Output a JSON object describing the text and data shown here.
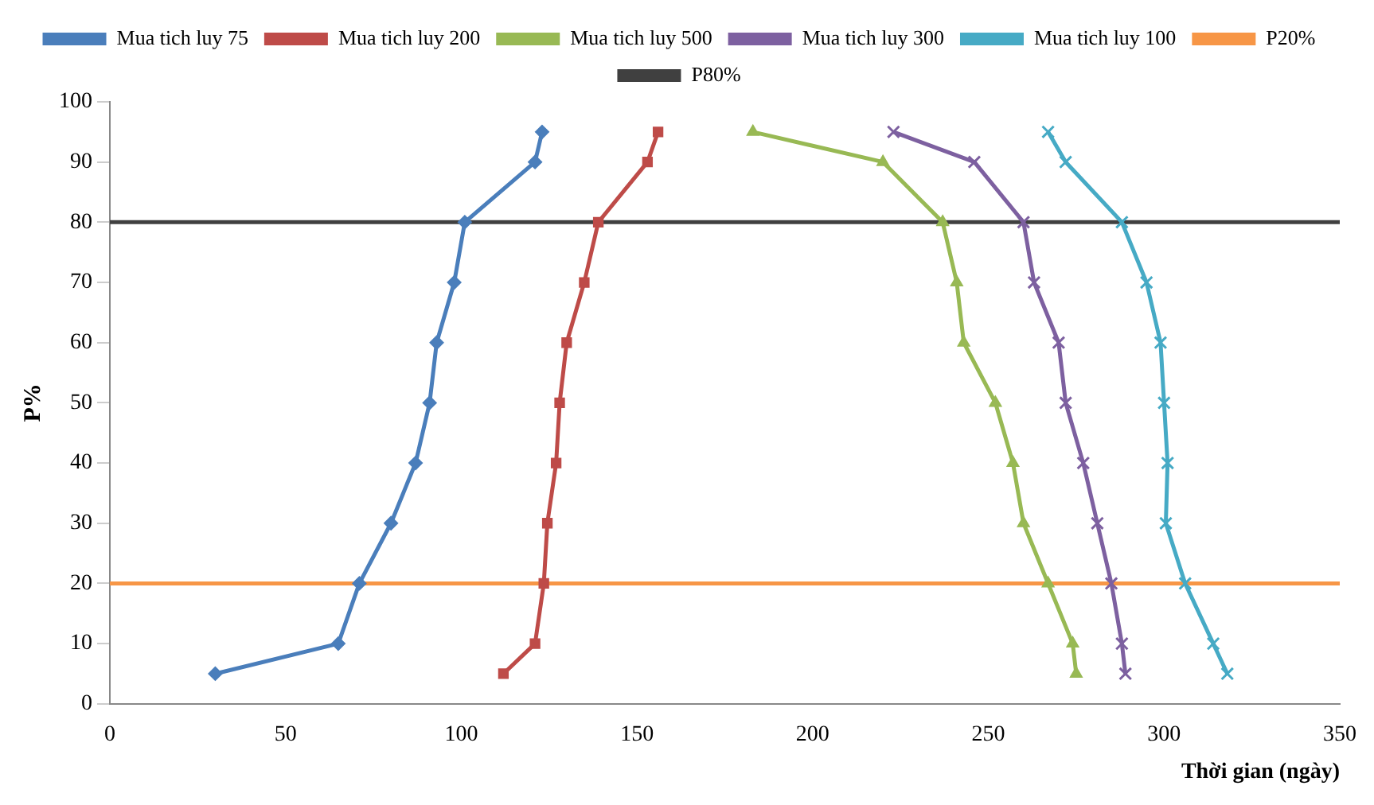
{
  "chart_data": {
    "type": "line",
    "xlabel": "Thời gian (ngày)",
    "ylabel": "P%",
    "xlim": [
      0,
      350
    ],
    "xticks": [
      0,
      50,
      100,
      150,
      200,
      250,
      300,
      350
    ],
    "ylim": [
      0,
      100
    ],
    "yticks": [
      0,
      10,
      20,
      30,
      40,
      50,
      60,
      70,
      80,
      90,
      100
    ],
    "grid": false,
    "legend": "top",
    "series": [
      {
        "name": "Mua tich luy 75",
        "color": "#4a7ebb",
        "marker": "diamond",
        "x": [
          30,
          65,
          71,
          80,
          87,
          91,
          93,
          98,
          101,
          121,
          123
        ],
        "values": [
          5,
          10,
          20,
          30,
          40,
          50,
          60,
          70,
          80,
          90,
          95
        ]
      },
      {
        "name": "Mua tich luy 200",
        "color": "#be4b48",
        "marker": "square",
        "x": [
          112,
          121,
          123.5,
          124.5,
          127,
          128,
          130,
          135,
          139,
          153,
          156
        ],
        "values": [
          5,
          10,
          20,
          30,
          40,
          50,
          60,
          70,
          80,
          90,
          95
        ]
      },
      {
        "name": "Mua tich luy 500",
        "color": "#98b954",
        "marker": "triangle",
        "x": [
          275,
          274,
          267,
          260,
          257,
          252,
          243,
          241,
          237,
          220,
          183
        ],
        "values": [
          5,
          10,
          20,
          30,
          40,
          50,
          60,
          70,
          80,
          90,
          95
        ]
      },
      {
        "name": "Mua tich luy 300",
        "color": "#7d60a0",
        "marker": "cross",
        "x": [
          289,
          288,
          285,
          281,
          277,
          272,
          270,
          263,
          260,
          246,
          223
        ],
        "values": [
          5,
          10,
          20,
          30,
          40,
          50,
          60,
          70,
          80,
          90,
          95
        ]
      },
      {
        "name": "Mua tich luy 100",
        "color": "#46aac5",
        "marker": "cross",
        "x": [
          318,
          314,
          306,
          300.5,
          301,
          300,
          299,
          295,
          288,
          272,
          267
        ],
        "values": [
          5,
          10,
          20,
          30,
          40,
          50,
          60,
          70,
          80,
          90,
          95
        ]
      }
    ],
    "ref_lines": [
      {
        "axis": "y",
        "value": 20,
        "label": "P20%",
        "color": "#f79646"
      },
      {
        "axis": "y",
        "value": 80,
        "label": "P80%",
        "color": "#404040"
      }
    ]
  }
}
